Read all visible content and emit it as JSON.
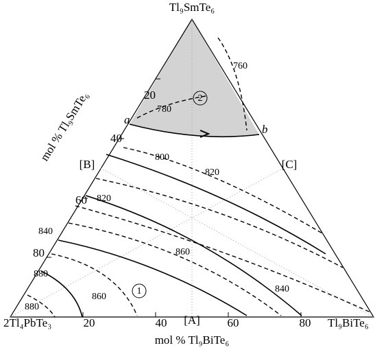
{
  "vertices": {
    "top": "Tl₉SmTe₆",
    "left": "2Tl₄PbTe₃",
    "right": "Tl₉BiTe₆"
  },
  "axes": {
    "left": "mol % Tl₉SmTe₆",
    "bottom": "mol % Tl₉BiTe₆"
  },
  "left_ticks": [
    "20",
    "40",
    "60",
    "80"
  ],
  "bottom_ticks": [
    "20",
    "40",
    "60",
    "80"
  ],
  "sections": [
    "[A]",
    "[B]",
    "[C]"
  ],
  "points": [
    "a",
    "b"
  ],
  "regions": [
    "2",
    "1"
  ],
  "isotherms": [
    "760",
    "780",
    "800",
    "820",
    "820",
    "840",
    "860",
    "880",
    "860",
    "880",
    "840"
  ]
}
